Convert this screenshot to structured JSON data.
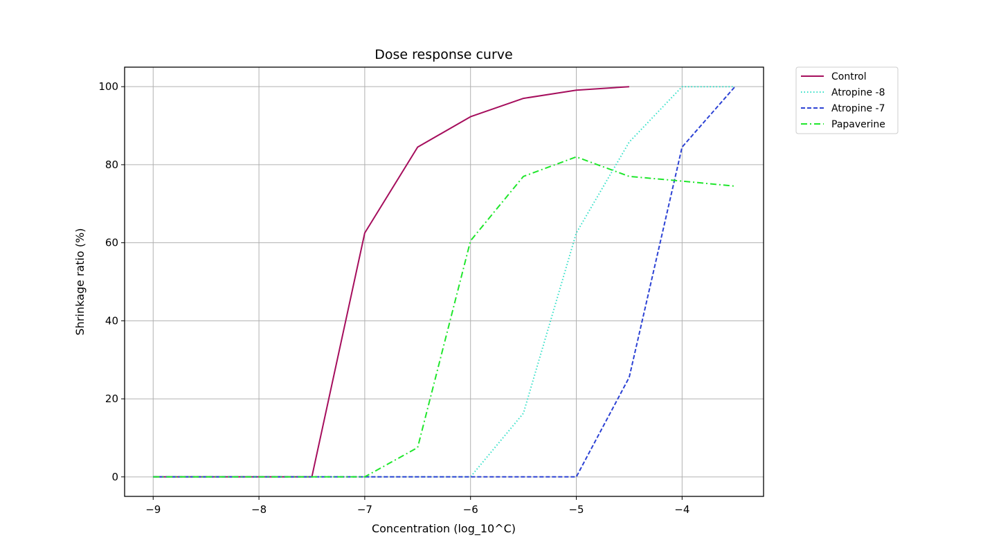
{
  "chart_data": {
    "type": "line",
    "title": "Dose response curve",
    "xlabel": "Concentration (log_10^C)",
    "ylabel": "Shrinkage ratio (%)",
    "xlim": [
      -9.27,
      -3.23
    ],
    "ylim": [
      -5,
      105
    ],
    "xticks": [
      -9,
      -8,
      -7,
      -6,
      -5,
      -4
    ],
    "xtick_labels": [
      "−9",
      "−8",
      "−7",
      "−6",
      "−5",
      "−4"
    ],
    "yticks": [
      0,
      20,
      40,
      60,
      80,
      100
    ],
    "ytick_labels": [
      "0",
      "20",
      "40",
      "60",
      "80",
      "100"
    ],
    "grid": true,
    "legend_position": "outside-top-right",
    "series": [
      {
        "name": "Control",
        "color": "#a50d5c",
        "dash": "solid",
        "x": [
          -9,
          -8.5,
          -8,
          -7.5,
          -7,
          -6.5,
          -6,
          -5.5,
          -5,
          -4.5
        ],
        "y": [
          0,
          0,
          0,
          0,
          62.5,
          84.5,
          92.3,
          97,
          99.1,
          100
        ]
      },
      {
        "name": "Atropine -8",
        "color": "#2edfc6",
        "dash": "dotted",
        "x": [
          -9,
          -8.5,
          -8,
          -7.5,
          -7,
          -6.5,
          -6,
          -5.5,
          -5,
          -4.5,
          -4,
          -3.5
        ],
        "y": [
          0,
          0,
          0,
          0,
          0,
          0,
          0,
          16.3,
          62.5,
          85.8,
          100,
          100
        ]
      },
      {
        "name": "Atropine -7",
        "color": "#2b41d4",
        "dash": "dashed",
        "x": [
          -9,
          -8.5,
          -8,
          -7.5,
          -7,
          -6.5,
          -6,
          -5.5,
          -5,
          -4.5,
          -4,
          -3.5
        ],
        "y": [
          0,
          0,
          0,
          0,
          0,
          0,
          0,
          0,
          0,
          25.5,
          84.5,
          100
        ]
      },
      {
        "name": "Papaverine",
        "color": "#1ee62b",
        "dash": "dashdot",
        "x": [
          -9,
          -8.5,
          -8,
          -7.5,
          -7,
          -6.5,
          -6,
          -5.5,
          -5,
          -4.5,
          -4,
          -3.5
        ],
        "y": [
          0,
          0,
          0,
          0,
          0,
          7.5,
          60.5,
          77,
          82,
          77,
          75.8,
          74.5
        ]
      }
    ]
  }
}
